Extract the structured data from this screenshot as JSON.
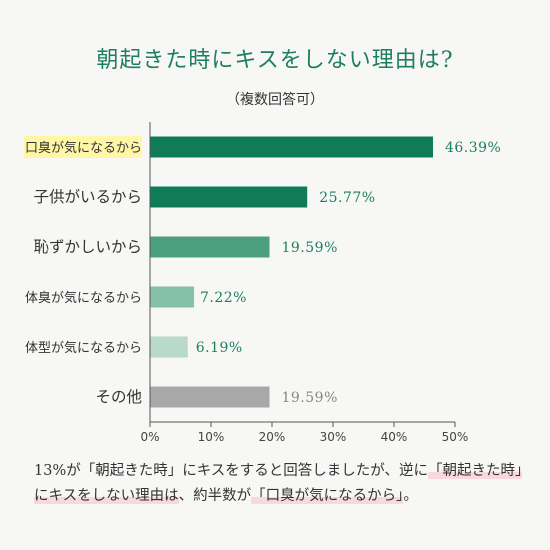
{
  "title": "朝起きた時にキスをしない理由は?",
  "subtitle": "（複数回答可）",
  "colors": {
    "highlight_label": "#fff7a6",
    "note_highlight": "#f8d7df",
    "value_text": "#1d7f5f",
    "other_value_text": "#888888"
  },
  "chart_data": {
    "type": "bar",
    "orientation": "horizontal",
    "title": "朝起きた時にキスをしない理由は?",
    "subtitle": "（複数回答可）",
    "categories": [
      "口臭が気になるから",
      "子供がいるから",
      "恥ずかしいから",
      "体臭が気になるから",
      "体型が気になるから",
      "その他"
    ],
    "values": [
      46.39,
      25.77,
      19.59,
      7.22,
      6.19,
      19.59
    ],
    "value_labels": [
      "46.39%",
      "25.77%",
      "19.59%",
      "7.22%",
      "6.19%",
      "19.59%"
    ],
    "bar_colors": [
      "#0f7b57",
      "#0f7b57",
      "#4c9f7f",
      "#86c0a8",
      "#b9d9cb",
      "#a8a8a8"
    ],
    "highlighted_category": "口臭が気になるから",
    "xlim": [
      0,
      50
    ],
    "xticks": [
      0,
      10,
      20,
      30,
      40,
      50
    ],
    "xtick_labels": [
      "0%",
      "10%",
      "20%",
      "30%",
      "40%",
      "50%"
    ],
    "grid": false
  },
  "note": {
    "part1": "13%が「朝起きた時」にキスをすると回答しましたが、逆に",
    "part2": "「朝起きた時」にキスをしない理由は",
    "part3": "、約半数が",
    "part4": "「口臭が気になるから」",
    "part5": "。"
  }
}
